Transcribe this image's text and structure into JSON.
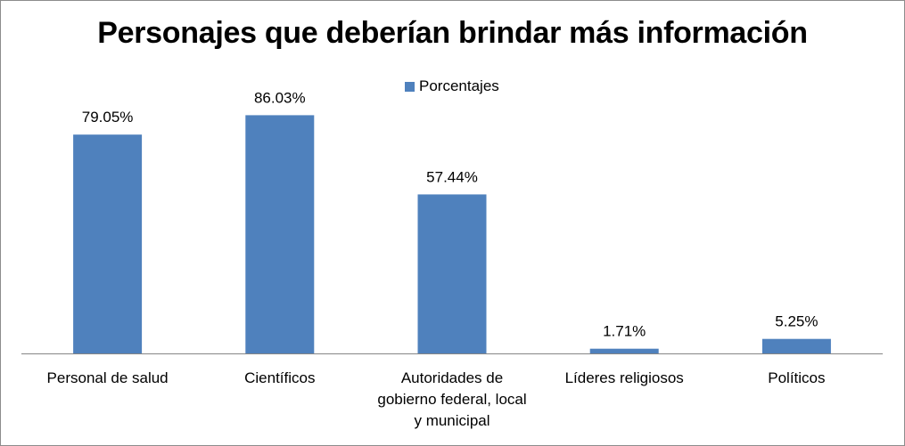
{
  "chart_data": {
    "type": "bar",
    "title": "Personajes que deberían brindar más información",
    "categories": [
      "Personal de salud",
      "Científicos",
      "Autoridades de gobierno federal, local y municipal",
      "Líderes religiosos",
      "Políticos"
    ],
    "category_lines": [
      [
        "Personal de salud"
      ],
      [
        "Científicos"
      ],
      [
        "Autoridades de",
        "gobierno federal, local",
        "y municipal"
      ],
      [
        "Líderes religiosos"
      ],
      [
        "Políticos"
      ]
    ],
    "series": [
      {
        "name": "Porcentajes",
        "values": [
          79.05,
          86.03,
          57.44,
          1.71,
          5.25
        ],
        "labels": [
          "79.05%",
          "86.03%",
          "57.44%",
          "1.71%",
          "5.25%"
        ],
        "color": "#4f81bd"
      }
    ],
    "ylim": [
      0,
      100
    ],
    "grid": false,
    "legend_position": "top"
  }
}
